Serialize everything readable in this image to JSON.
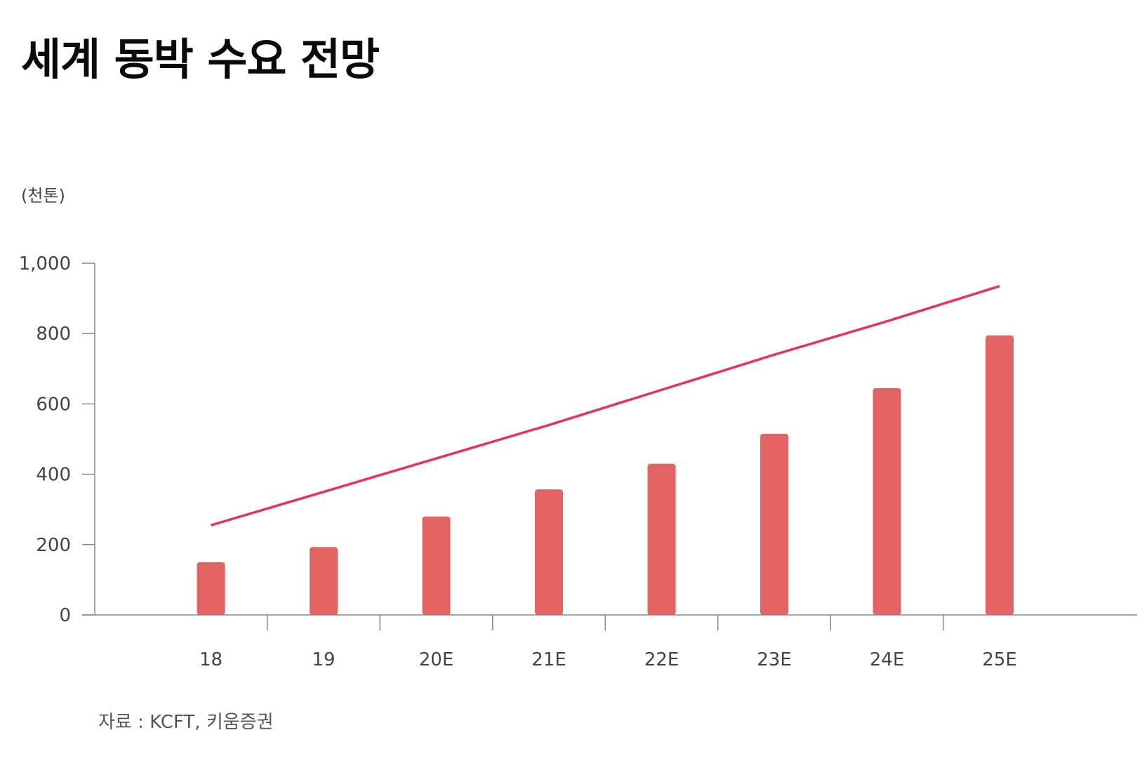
{
  "title": "세계 동박 수요 전망",
  "unit_label": "(천톤)",
  "source": "자료 : KCFT, 키움증권",
  "colors": {
    "bar": "#e46464",
    "line": "#e8325a",
    "axis": "#888888"
  },
  "chart_data": {
    "type": "bar",
    "categories": [
      "18",
      "19",
      "20E",
      "21E",
      "22E",
      "23E",
      "24E",
      "25E"
    ],
    "series": [
      {
        "type": "bar",
        "values": [
          150,
          193,
          280,
          357,
          430,
          515,
          645,
          795
        ]
      },
      {
        "type": "line",
        "trend": true,
        "values": [
          255,
          350,
          445,
          540,
          640,
          740,
          835,
          935
        ]
      }
    ],
    "yticks": [
      "0",
      "200",
      "400",
      "600",
      "800",
      "1,000"
    ],
    "ylim": [
      0,
      1000
    ],
    "ylabel": "(천톤)",
    "grid": false
  }
}
